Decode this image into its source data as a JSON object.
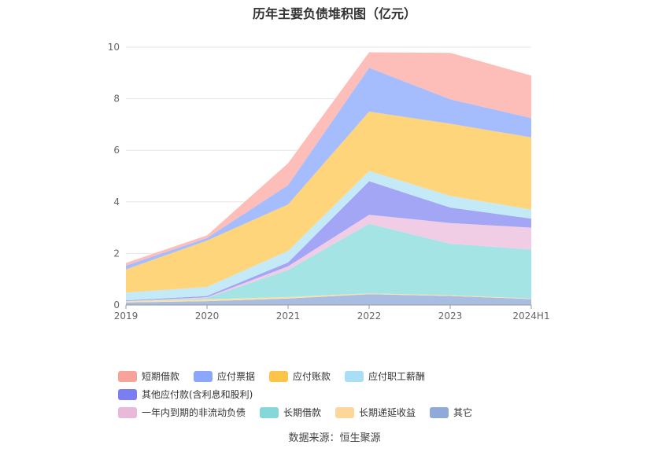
{
  "chart_data": {
    "type": "area",
    "stacked": true,
    "title": "历年主要负债堆积图（亿元）",
    "categories": [
      "2019",
      "2020",
      "2021",
      "2022",
      "2023",
      "2024H1"
    ],
    "ylim": [
      0,
      10
    ],
    "yticks": [
      "0",
      "2",
      "4",
      "6",
      "8",
      "10"
    ],
    "grid": true,
    "legend_position": "bottom",
    "series": [
      {
        "name": "其它",
        "color": "#a9bde3",
        "values": [
          0.1,
          0.15,
          0.25,
          0.42,
          0.35,
          0.23
        ]
      },
      {
        "name": "长期递延收益",
        "color": "#fde0a8",
        "values": [
          0.05,
          0.07,
          0.06,
          0.03,
          0.03,
          0.02
        ]
      },
      {
        "name": "长期借款",
        "color": "#a5e4e4",
        "values": [
          0.0,
          0.05,
          1.05,
          2.7,
          2.0,
          1.9
        ]
      },
      {
        "name": "一年内到期的非流动负债",
        "color": "#f0cde4",
        "values": [
          0.0,
          0.03,
          0.14,
          0.35,
          0.8,
          0.85
        ]
      },
      {
        "name": "其他应付款(含利息和股利)",
        "color": "#a3a6f5",
        "values": [
          0.03,
          0.05,
          0.15,
          1.3,
          0.6,
          0.35
        ]
      },
      {
        "name": "应付职工薪酬",
        "color": "#c4eaf8",
        "values": [
          0.3,
          0.35,
          0.45,
          0.4,
          0.45,
          0.35
        ]
      },
      {
        "name": "应付账款",
        "color": "#ffd57c",
        "values": [
          0.9,
          1.8,
          1.8,
          2.3,
          2.8,
          2.8
        ]
      },
      {
        "name": "应付票据",
        "color": "#a6bdfd",
        "values": [
          0.15,
          0.1,
          0.75,
          1.7,
          0.95,
          0.75
        ]
      },
      {
        "name": "短期借款",
        "color": "#fdbdb8",
        "values": [
          0.1,
          0.1,
          0.85,
          0.6,
          1.8,
          1.65
        ]
      }
    ]
  },
  "legend": {
    "row1": [
      {
        "label": "短期借款",
        "color": "#f8a39a"
      },
      {
        "label": "应付票据",
        "color": "#8aa7fb"
      },
      {
        "label": "应付账款",
        "color": "#fdc44a"
      },
      {
        "label": "应付职工薪酬",
        "color": "#a9dff5"
      },
      {
        "label": "其他应付款(含利息和股利)",
        "color": "#7b7ef2"
      }
    ],
    "row2": [
      {
        "label": "一年内到期的非流动负债",
        "color": "#e8b9d8"
      },
      {
        "label": "长期借款",
        "color": "#86d7d7"
      },
      {
        "label": "长期递延收益",
        "color": "#fdd69a"
      },
      {
        "label": "其它",
        "color": "#8fa9d9"
      }
    ]
  },
  "source": "数据来源：恒生聚源"
}
